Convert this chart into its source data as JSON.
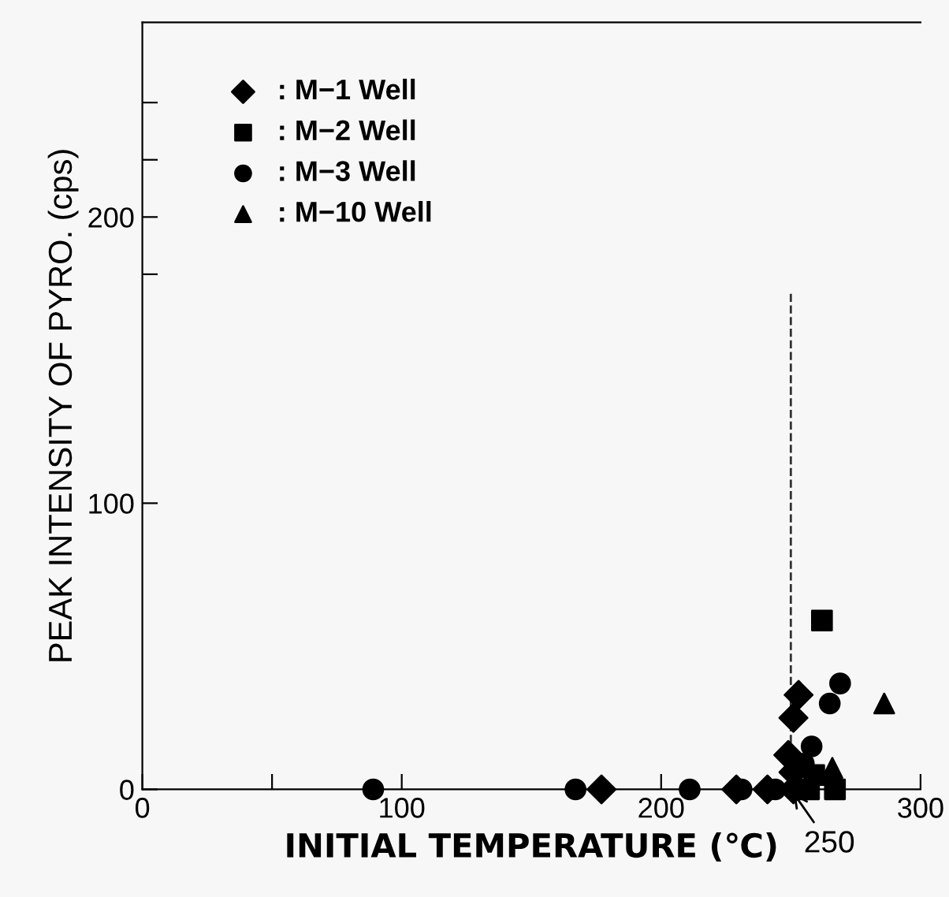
{
  "chart_data": {
    "type": "scatter",
    "xlabel": "INITIAL TEMPERATURE (℃)",
    "ylabel": "PEAK INTENSITY OF PYRO. (cps)",
    "xlim": [
      0,
      300
    ],
    "ylim": [
      0,
      268
    ],
    "xticks": [
      0,
      {
        "value": 50,
        "label": null
      },
      100,
      200,
      300
    ],
    "yticks": [
      0,
      100,
      {
        "value": 180,
        "label": null
      },
      200,
      {
        "value": 220,
        "label": null
      },
      {
        "value": 240,
        "label": null
      }
    ],
    "legend": "top left",
    "grid": false,
    "ref_lines": [
      {
        "axis": "x",
        "value": 250,
        "label": "250",
        "line_style": "dashed",
        "color": "#333333"
      }
    ],
    "series": [
      {
        "name": ": M−1 Well",
        "color": "#000000",
        "marker": "diamond",
        "x": [
          177,
          229,
          241,
          251,
          253,
          251,
          249,
          251
        ],
        "values": [
          0,
          0,
          0,
          0,
          33,
          25,
          12,
          6
        ]
      },
      {
        "name": ": M−2 Well",
        "color": "#000000",
        "marker": "square",
        "x": [
          257,
          267,
          262,
          259
        ],
        "values": [
          0,
          0,
          59,
          5
        ]
      },
      {
        "name": ": M−3 Well",
        "color": "#000000",
        "marker": "circle",
        "x": [
          89,
          167,
          211,
          231,
          244,
          258,
          255,
          265,
          269
        ],
        "values": [
          0,
          0,
          0,
          0,
          0,
          15,
          9,
          30,
          37
        ]
      },
      {
        "name": ": M−10 Well",
        "color": "#000000",
        "marker": "triangle",
        "x": [
          266,
          286
        ],
        "values": [
          7.5,
          30
        ]
      }
    ]
  }
}
